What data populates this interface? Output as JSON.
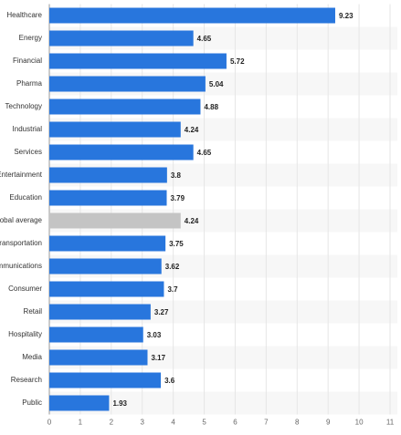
{
  "chart_data": {
    "type": "bar",
    "orientation": "horizontal",
    "categories": [
      "Healthcare",
      "Energy",
      "Financial",
      "Pharma",
      "Technology",
      "Industrial",
      "Services",
      "Entertainment",
      "Education",
      "Global average",
      "Transportation",
      "Communications",
      "Consumer",
      "Retail",
      "Hospitality",
      "Media",
      "Research",
      "Public"
    ],
    "values": [
      9.23,
      4.65,
      5.72,
      5.04,
      4.88,
      4.24,
      4.65,
      3.8,
      3.79,
      4.24,
      3.75,
      3.62,
      3.7,
      3.27,
      3.03,
      3.17,
      3.6,
      1.93
    ],
    "colors": [
      "#2876dd",
      "#2876dd",
      "#2876dd",
      "#2876dd",
      "#2876dd",
      "#2876dd",
      "#2876dd",
      "#2876dd",
      "#2876dd",
      "#c4c4c4",
      "#2876dd",
      "#2876dd",
      "#2876dd",
      "#2876dd",
      "#2876dd",
      "#2876dd",
      "#2876dd",
      "#2876dd"
    ],
    "xlim": [
      0,
      11
    ],
    "xticks": [
      0,
      1,
      2,
      3,
      4,
      5,
      6,
      7,
      8,
      9,
      10,
      11
    ],
    "grid": true
  }
}
